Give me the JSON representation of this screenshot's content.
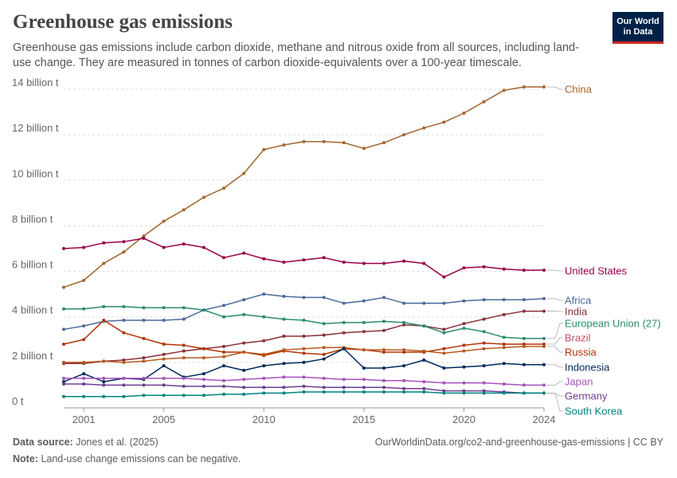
{
  "header": {
    "title": "Greenhouse gas emissions",
    "subtitle": "Greenhouse gas emissions include carbon dioxide, methane and nitrous oxide from all sources, including land-use change. They are measured in tonnes of carbon dioxide-equivalents over a 100-year timescale.",
    "logo_line1": "Our World",
    "logo_line2": "in Data"
  },
  "footer": {
    "source_label": "Data source:",
    "source_value": "Jones et al. (2025)",
    "note_label": "Note:",
    "note_value": "Land-use change emissions can be negative.",
    "site_text": "OurWorldinData.org/co2-and-greenhouse-gas-emissions | CC BY"
  },
  "chart_data": {
    "type": "line",
    "title": "Greenhouse gas emissions",
    "xlabel": "",
    "ylabel": "",
    "xlim": [
      2000,
      2024
    ],
    "ylim": [
      0,
      14
    ],
    "x": [
      2000,
      2001,
      2002,
      2003,
      2004,
      2005,
      2006,
      2007,
      2008,
      2009,
      2010,
      2011,
      2012,
      2013,
      2014,
      2015,
      2016,
      2017,
      2018,
      2019,
      2020,
      2021,
      2022,
      2023,
      2024
    ],
    "xticks": [
      2001,
      2005,
      2010,
      2015,
      2020,
      2024
    ],
    "xtick_labels": [
      "2001",
      "2005",
      "2010",
      "2015",
      "2020",
      "2024"
    ],
    "yticks": [
      0,
      2,
      4,
      6,
      8,
      10,
      12,
      14
    ],
    "ytick_labels": [
      "0 t",
      "2 billion t",
      "4 billion t",
      "6 billion t",
      "8 billion t",
      "10 billion t",
      "12 billion t",
      "14 billion t"
    ],
    "grid": true,
    "legend": "labels at right end of lines",
    "series": [
      {
        "name": "China",
        "color": "#a2662d",
        "values": [
          5.3,
          5.6,
          6.35,
          6.85,
          7.55,
          8.2,
          8.7,
          9.25,
          9.65,
          10.3,
          11.35,
          11.55,
          11.7,
          11.7,
          11.65,
          11.4,
          11.65,
          12.0,
          12.3,
          12.55,
          12.95,
          13.45,
          13.95,
          14.1,
          14.1
        ]
      },
      {
        "name": "United States",
        "color": "#970046",
        "values": [
          7.0,
          7.05,
          7.25,
          7.3,
          7.45,
          7.05,
          7.2,
          7.05,
          6.6,
          6.8,
          6.55,
          6.4,
          6.5,
          6.6,
          6.4,
          6.35,
          6.35,
          6.45,
          6.35,
          5.75,
          6.15,
          6.2,
          6.1,
          6.05,
          6.05
        ]
      },
      {
        "name": "Africa",
        "color": "#4c6a9c",
        "values": [
          3.45,
          3.6,
          3.8,
          3.85,
          3.85,
          3.85,
          3.9,
          4.3,
          4.5,
          4.75,
          5.0,
          4.9,
          4.85,
          4.85,
          4.6,
          4.7,
          4.85,
          4.6,
          4.6,
          4.6,
          4.7,
          4.75,
          4.75,
          4.75,
          4.8
        ]
      },
      {
        "name": "India",
        "color": "#883039",
        "values": [
          1.95,
          1.95,
          2.05,
          2.1,
          2.2,
          2.35,
          2.5,
          2.6,
          2.7,
          2.85,
          2.95,
          3.15,
          3.15,
          3.2,
          3.3,
          3.35,
          3.4,
          3.65,
          3.6,
          3.45,
          3.7,
          3.9,
          4.1,
          4.25,
          4.25
        ]
      },
      {
        "name": "European Union (27)",
        "color": "#38aaba",
        "values": [
          4.35,
          4.35,
          4.45,
          4.45,
          4.4,
          4.4,
          4.4,
          4.3,
          4.0,
          4.1,
          4.0,
          3.9,
          3.85,
          3.7,
          3.75,
          3.75,
          3.8,
          3.75,
          3.6,
          3.3,
          3.5,
          3.35,
          3.1,
          3.05,
          3.05
        ]
      },
      {
        "name": "Brazil",
        "color": "#c15065",
        "values": [
          2.8,
          3.0,
          3.85,
          3.3,
          3.05,
          2.8,
          2.75,
          2.6,
          2.45,
          2.45,
          2.3,
          2.5,
          2.4,
          2.35,
          2.6,
          2.55,
          2.45,
          2.45,
          2.45,
          2.6,
          2.75,
          2.85,
          2.8,
          2.8,
          2.8
        ]
      },
      {
        "name": "Russia",
        "color": "#b13507",
        "values": [
          2.0,
          2.0,
          2.05,
          2.0,
          2.05,
          2.15,
          2.2,
          2.2,
          2.25,
          2.45,
          2.35,
          2.55,
          2.6,
          2.65,
          2.65,
          2.55,
          2.55,
          2.55,
          2.5,
          2.4,
          2.5,
          2.6,
          2.65,
          2.7,
          2.7
        ]
      },
      {
        "name": "Indonesia",
        "color": "#00295b",
        "values": [
          1.15,
          1.5,
          1.15,
          1.3,
          1.25,
          1.85,
          1.35,
          1.5,
          1.85,
          1.65,
          1.85,
          1.95,
          2.0,
          2.15,
          2.6,
          1.75,
          1.75,
          1.85,
          2.1,
          1.75,
          1.8,
          1.85,
          1.95,
          1.9,
          1.9
        ]
      },
      {
        "name": "Japan",
        "color": "#a652ba",
        "values": [
          1.3,
          1.3,
          1.3,
          1.3,
          1.3,
          1.3,
          1.3,
          1.25,
          1.2,
          1.25,
          1.3,
          1.35,
          1.35,
          1.3,
          1.25,
          1.25,
          1.2,
          1.2,
          1.15,
          1.1,
          1.1,
          1.1,
          1.05,
          1.0,
          1.0
        ]
      },
      {
        "name": "Germany",
        "color": "#6d3e91",
        "values": [
          1.05,
          1.05,
          1.0,
          1.0,
          1.0,
          1.0,
          0.95,
          0.95,
          0.95,
          0.9,
          0.9,
          0.9,
          0.95,
          0.9,
          0.9,
          0.9,
          0.9,
          0.85,
          0.85,
          0.75,
          0.75,
          0.75,
          0.7,
          0.65,
          0.65
        ]
      },
      {
        "name": "South Korea",
        "color": "#18470f",
        "values": [
          0.5,
          0.5,
          0.5,
          0.5,
          0.55,
          0.55,
          0.55,
          0.55,
          0.6,
          0.6,
          0.65,
          0.65,
          0.7,
          0.7,
          0.7,
          0.7,
          0.7,
          0.7,
          0.7,
          0.65,
          0.65,
          0.65,
          0.65,
          0.65,
          0.65
        ]
      }
    ],
    "label_colors": {
      "China": "#a2662d",
      "United States": "#970046",
      "Africa": "#4c6a9c",
      "India": "#883039",
      "European Union (27)": "#2b8c6e",
      "Brazil": "#c15065",
      "Russia": "#b13507",
      "Indonesia": "#00295b",
      "Japan": "#a652ba",
      "Germany": "#6d3e91",
      "South Korea": "#00847e"
    },
    "series_colors_display": {
      "European Union (27)": "#2b8c6e",
      "Brazil": "#b13507",
      "Russia": "#b85a1f",
      "South Korea": "#00847e"
    }
  }
}
